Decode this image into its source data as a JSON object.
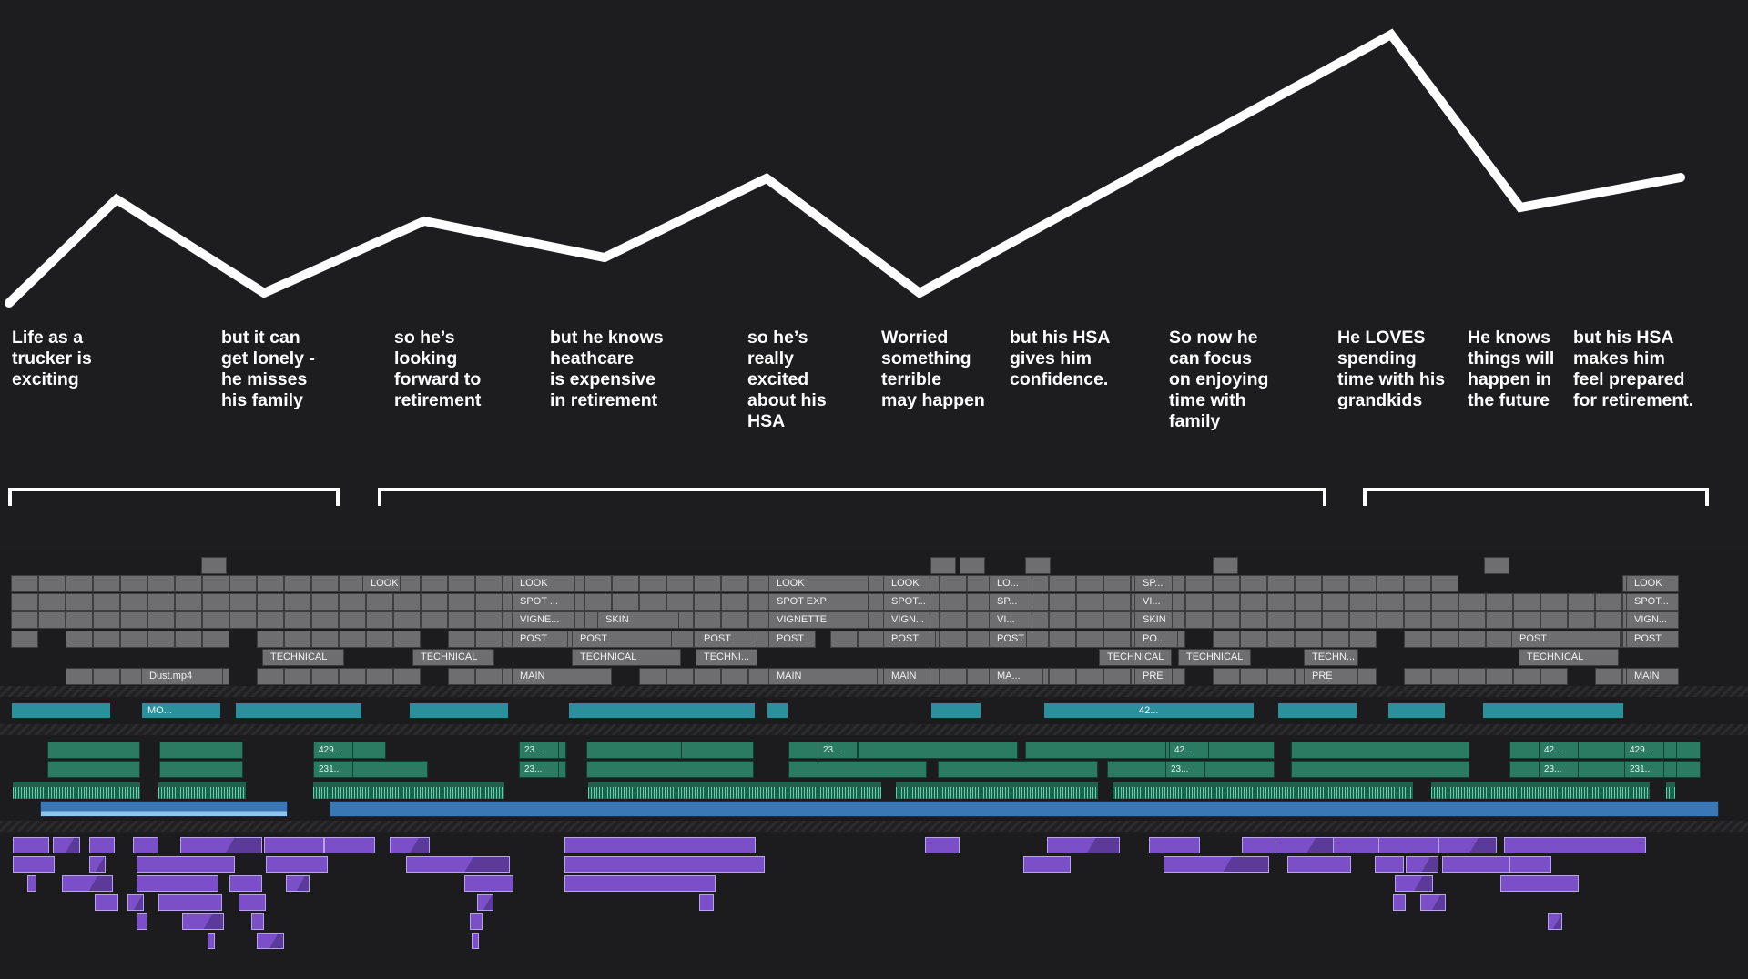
{
  "story_beats": [
    {
      "text": "Life as a\ntrucker is\nexciting"
    },
    {
      "text": "but it can\nget lonely -\nhe misses\nhis family"
    },
    {
      "text": "so he’s\nlooking\nforward to\nretirement"
    },
    {
      "text": "but he knows\nheathcare\nis expensive\nin retirement"
    },
    {
      "text": "so he’s\nreally\nexcited\nabout his\nHSA"
    },
    {
      "text": "Worried\nsomething\nterrible\nmay happen"
    },
    {
      "text": "but his HSA\ngives him\nconfidence."
    },
    {
      "text": "So now he\ncan focus\non enjoying\ntime with\nfamily"
    },
    {
      "text": "He LOVES\nspending\ntime with his\ngrandkids"
    },
    {
      "text": "He knows\nthings will\nhappen in\nthe future"
    },
    {
      "text": "but his HSA\nmakes him\nfeel prepared\nfor retirement."
    }
  ],
  "timeline": {
    "graphics_lanes": [
      {
        "clips": [
          {
            "label": "LOOK"
          },
          {
            "label": "LOOK"
          },
          {
            "label": "LOOK"
          },
          {
            "label": "LOOK"
          },
          {
            "label": "LO..."
          },
          {
            "label": "SP..."
          },
          {
            "label": "LOOK"
          }
        ]
      },
      {
        "clips": [
          {
            "label": "SPOT ..."
          },
          {
            "label": "SPOT EXP"
          },
          {
            "label": "SPOT..."
          },
          {
            "label": "SP..."
          },
          {
            "label": "VI..."
          },
          {
            "label": "SPOT..."
          }
        ]
      },
      {
        "clips": [
          {
            "label": "VIGNE..."
          },
          {
            "label": "SKIN"
          },
          {
            "label": "VIGNETTE"
          },
          {
            "label": "VIGN..."
          },
          {
            "label": "VI..."
          },
          {
            "label": "SKIN"
          },
          {
            "label": "VIGN..."
          }
        ]
      },
      {
        "clips": [
          {
            "label": "POST"
          },
          {
            "label": "POST"
          },
          {
            "label": "POST"
          },
          {
            "label": "POST"
          },
          {
            "label": "POST"
          },
          {
            "label": "POST"
          },
          {
            "label": "PO..."
          },
          {
            "label": "POST"
          },
          {
            "label": "POST"
          }
        ]
      },
      {
        "clips": [
          {
            "label": "TECHNICAL"
          },
          {
            "label": "TECHNICAL"
          },
          {
            "label": "TECHNICAL"
          },
          {
            "label": "TECHNI..."
          },
          {
            "label": "TECHNICAL"
          },
          {
            "label": "TECHNICAL"
          },
          {
            "label": "TECHN..."
          },
          {
            "label": "TECHNICAL"
          }
        ]
      },
      {
        "clips": [
          {
            "label": "Dust.mp4"
          },
          {
            "label": "MAIN"
          },
          {
            "label": "MAIN"
          },
          {
            "label": "MAIN"
          },
          {
            "label": "MA..."
          },
          {
            "label": "PRE"
          },
          {
            "label": "PRE"
          },
          {
            "label": "MAIN"
          }
        ]
      }
    ],
    "teal_clip_labels": [
      "MO...",
      "42..."
    ],
    "green_lane1_labels": [
      "429...",
      "23...",
      "23...",
      "42...",
      "42...",
      "429..."
    ],
    "green_lane2_labels": [
      "231...",
      "23...",
      "23...",
      "23...",
      "231..."
    ]
  },
  "colors": {
    "background": "#1d1d1f",
    "arc_line": "#ffffff",
    "graphics_clip": "#6e6e70",
    "video_clip_teal": "#2c8f9c",
    "video_clip_green": "#2b7a62",
    "music_clip_blue": "#3a78b5",
    "audio_clip_purple": "#7a4fc8"
  }
}
